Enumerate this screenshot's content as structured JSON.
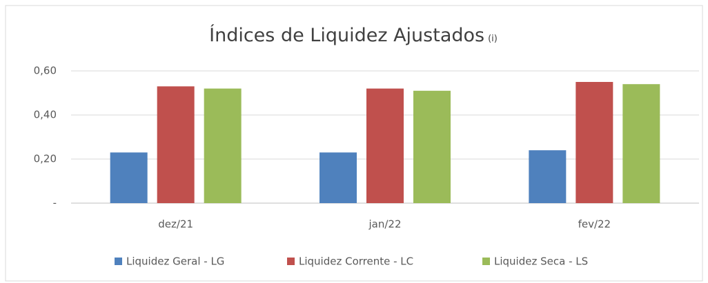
{
  "chart_data": {
    "type": "bar",
    "title": "Índices de Liquidez Ajustados",
    "title_note": "(i)",
    "categories": [
      "dez/21",
      "jan/22",
      "fev/22"
    ],
    "series": [
      {
        "name": "Liquidez Geral - LG",
        "color": "#4f81bd",
        "values": [
          0.23,
          0.23,
          0.24
        ]
      },
      {
        "name": "Liquidez Corrente - LC",
        "color": "#c0504d",
        "values": [
          0.53,
          0.52,
          0.55
        ]
      },
      {
        "name": "Liquidez Seca - LS",
        "color": "#9bbb59",
        "values": [
          0.52,
          0.51,
          0.54
        ]
      }
    ],
    "ylim": [
      0,
      0.6
    ],
    "yticks": [
      {
        "value": 0,
        "label": "-"
      },
      {
        "value": 0.2,
        "label": "0,20"
      },
      {
        "value": 0.4,
        "label": "0,40"
      },
      {
        "value": 0.6,
        "label": "0,60"
      }
    ],
    "grid": true,
    "legend": "bottom"
  }
}
